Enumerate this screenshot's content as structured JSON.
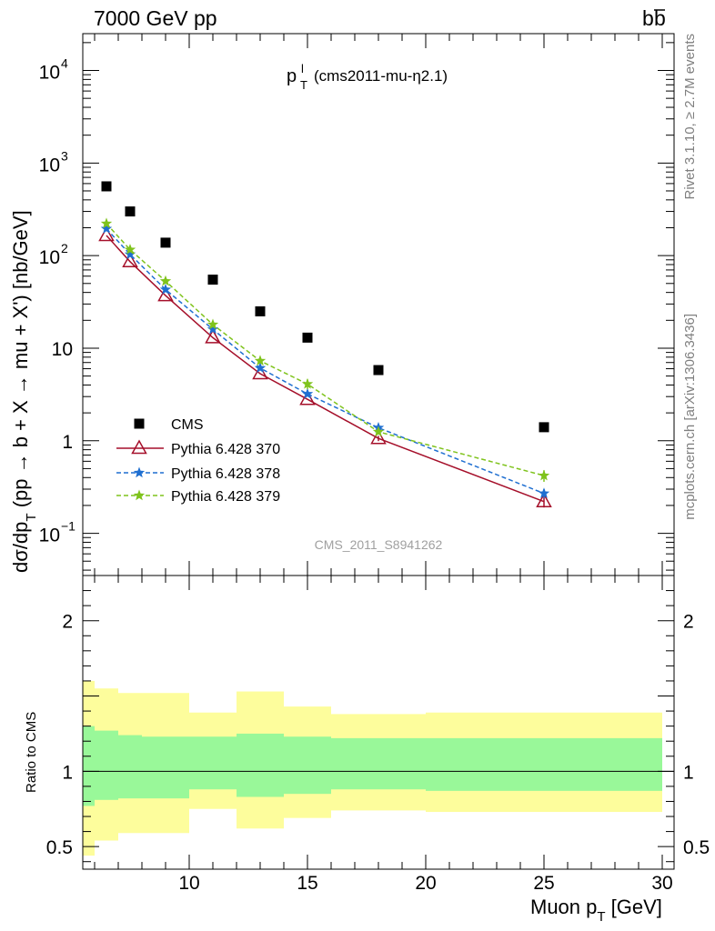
{
  "header": {
    "energy_label": "7000 GeV pp",
    "process_label": "b",
    "process_label_bar": "b"
  },
  "side_labels": {
    "rivet": "Rivet 3.1.10, ≥ 2.7M events",
    "mcplots": "mcplots.cern.ch [arXiv:1306.3436]"
  },
  "chart_data": [
    {
      "type": "scatter",
      "title": {
        "main": "p",
        "sup": "l",
        "sub": "T",
        "rest": "(cms2011-mu-η2.1)"
      },
      "watermark": "CMS_2011_S8941262",
      "ylabel": {
        "prefix": "dσ/dp",
        "sub": "T",
        "suffix": " (pp → b + X → mu + X') [nb/GeV]"
      },
      "yscale": "log",
      "ylim": [
        0.035,
        25000
      ],
      "xlim": [
        5.5,
        30.5
      ],
      "y_ticks": [
        {
          "v": 0.1,
          "base": "10",
          "exp": "−1"
        },
        {
          "v": 1,
          "base": "1",
          "exp": ""
        },
        {
          "v": 10,
          "base": "10",
          "exp": ""
        },
        {
          "v": 100,
          "base": "10",
          "exp": "2"
        },
        {
          "v": 1000,
          "base": "10",
          "exp": "3"
        },
        {
          "v": 10000,
          "base": "10",
          "exp": "4"
        }
      ],
      "legend_position": "lower-left",
      "series": [
        {
          "name": "CMS",
          "style": "square",
          "color": "#000000",
          "x": [
            6.5,
            7.5,
            9,
            11,
            13,
            15,
            18,
            25
          ],
          "y": [
            560,
            300,
            138,
            55,
            25,
            13,
            5.8,
            1.4
          ],
          "yerr": [
            0,
            0,
            0,
            0,
            0,
            0,
            0,
            0
          ]
        },
        {
          "name": "Pythia 6.428 370",
          "style": "triangle-solid",
          "color": "#a50f2a",
          "x": [
            6.5,
            7.5,
            9,
            11,
            13,
            15,
            18,
            25
          ],
          "y": [
            165,
            86,
            37,
            13,
            5.3,
            2.8,
            1.06,
            0.22
          ],
          "yerr": [
            0,
            0,
            0,
            0,
            0,
            0,
            0.07,
            0.03
          ]
        },
        {
          "name": "Pythia 6.428 378",
          "style": "star-dashed",
          "color": "#1f6fd1",
          "x": [
            6.5,
            7.5,
            9,
            11,
            13,
            15,
            18,
            25
          ],
          "y": [
            195,
            103,
            43,
            16,
            6.1,
            3.2,
            1.38,
            0.27
          ],
          "yerr": [
            0,
            0,
            0,
            0,
            0,
            0,
            0.1,
            0.03
          ]
        },
        {
          "name": "Pythia 6.428 379",
          "style": "star-dashed",
          "color": "#7fc31c",
          "x": [
            6.5,
            7.5,
            9,
            11,
            13,
            15,
            18,
            25
          ],
          "y": [
            222,
            116,
            53,
            18,
            7.3,
            4.1,
            1.25,
            0.42
          ],
          "yerr": [
            0,
            0,
            0,
            0,
            0,
            0.5,
            0.08,
            0.06
          ]
        }
      ]
    },
    {
      "type": "area",
      "ylabel": "Ratio to CMS",
      "xlabel": {
        "prefix": "Muon p",
        "sub": "T",
        "suffix": " [GeV]"
      },
      "xlim": [
        5.5,
        30.5
      ],
      "ylim": [
        0.35,
        2.3
      ],
      "x_ticks": [
        10,
        15,
        20,
        25,
        30
      ],
      "y_ticks": [
        0.5,
        1,
        2
      ],
      "reference_line": 1,
      "bins": [
        5,
        6,
        7,
        8,
        10,
        12,
        14,
        16,
        20,
        30
      ],
      "band_inner": {
        "color": "#99f899",
        "lo": [
          0.77,
          0.81,
          0.82,
          0.82,
          0.88,
          0.83,
          0.85,
          0.88,
          0.87
        ],
        "hi": [
          1.3,
          1.27,
          1.24,
          1.23,
          1.23,
          1.25,
          1.23,
          1.22,
          1.22
        ]
      },
      "band_outer": {
        "color": "#fdfd9c",
        "lo": [
          0.44,
          0.54,
          0.59,
          0.59,
          0.75,
          0.62,
          0.69,
          0.74,
          0.73
        ],
        "hi": [
          1.6,
          1.55,
          1.52,
          1.52,
          1.39,
          1.53,
          1.43,
          1.38,
          1.39
        ]
      }
    }
  ]
}
